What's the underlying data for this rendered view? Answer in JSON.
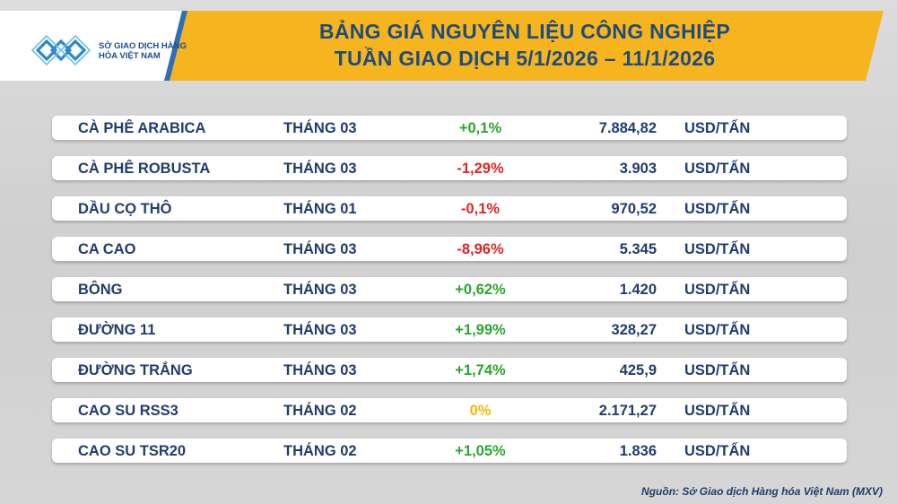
{
  "header": {
    "logo_text": "SỞ GIAO DỊCH HÀNG HÓA VIỆT NAM",
    "title_line1": "BẢNG GIÁ NGUYÊN LIỆU CÔNG NGHIỆP",
    "title_line2": "TUẦN GIAO DỊCH 5/1/2026 – 11/1/2026"
  },
  "colors": {
    "banner": "#f6b51e",
    "title": "#1f4c7f",
    "up": "#2aa52f",
    "down": "#e02424",
    "flat": "#f2b800"
  },
  "rows": [
    {
      "name": "CÀ PHÊ ARABICA",
      "month": "THÁNG 03",
      "change": "+0,1%",
      "direction": "up",
      "price": "7.884,82",
      "unit": "USD/TẤN"
    },
    {
      "name": "CÀ PHÊ ROBUSTA",
      "month": "THÁNG 03",
      "change": "-1,29%",
      "direction": "down",
      "price": "3.903",
      "unit": "USD/TẤN"
    },
    {
      "name": "DẦU CỌ THÔ",
      "month": "THÁNG 01",
      "change": "-0,1%",
      "direction": "down",
      "price": "970,52",
      "unit": "USD/TẤN"
    },
    {
      "name": "CA CAO",
      "month": "THÁNG 03",
      "change": "-8,96%",
      "direction": "down",
      "price": "5.345",
      "unit": "USD/TẤN"
    },
    {
      "name": "BÔNG",
      "month": "THÁNG 03",
      "change": "+0,62%",
      "direction": "up",
      "price": "1.420",
      "unit": "USD/TẤN"
    },
    {
      "name": "ĐƯỜNG 11",
      "month": "THÁNG 03",
      "change": "+1,99%",
      "direction": "up",
      "price": "328,27",
      "unit": "USD/TẤN"
    },
    {
      "name": "ĐƯỜNG TRẮNG",
      "month": "THÁNG 03",
      "change": "+1,74%",
      "direction": "up",
      "price": "425,9",
      "unit": "USD/TẤN"
    },
    {
      "name": "CAO SU RSS3",
      "month": "THÁNG 02",
      "change": "0%",
      "direction": "flat",
      "price": "2.171,27",
      "unit": "USD/TẤN"
    },
    {
      "name": "CAO SU TSR20",
      "month": "THÁNG 02",
      "change": "+1,05%",
      "direction": "up",
      "price": "1.836",
      "unit": "USD/TẤN"
    }
  ],
  "footer": {
    "source": "Nguồn: Sở Giao dịch Hàng hóa Việt Nam (MXV)"
  }
}
